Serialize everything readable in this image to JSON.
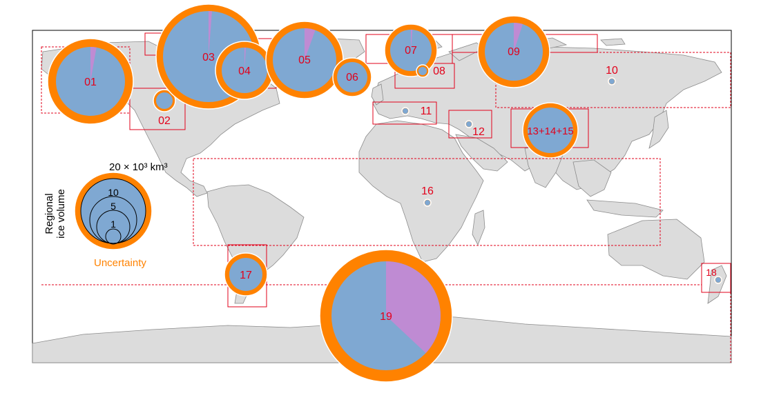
{
  "colors": {
    "land": "#dcdcdc",
    "coast": "#8a8a8a",
    "region_box": "#e2001a",
    "volume": "#7fa8d2",
    "sea_level_part": "#bf8bd3",
    "uncertainty": "#ff8200",
    "label": "#e2001a",
    "legend_text": "#000000",
    "legend_uncertainty_text": "#ff8200"
  },
  "legend": {
    "scale_label": "20 × 10³ km³",
    "levels": [
      "10",
      "5",
      "1"
    ],
    "axis_title_line1": "Regional",
    "axis_title_line2": "ice volume",
    "uncertainty_label": "Uncertainty"
  },
  "regions": [
    {
      "label": "01",
      "volume_share": 0.028
    },
    {
      "label": "02",
      "volume_share": 0.0
    },
    {
      "label": "03",
      "volume_share": 0.012
    },
    {
      "label": "04",
      "volume_share": 0.01
    },
    {
      "label": "05",
      "volume_share": 0.055
    },
    {
      "label": "06",
      "volume_share": 0.0
    },
    {
      "label": "07",
      "volume_share": 0.012
    },
    {
      "label": "08",
      "volume_share": 0.0
    },
    {
      "label": "09",
      "volume_share": 0.05
    },
    {
      "label": "10",
      "volume_share": 0.0
    },
    {
      "label": "11",
      "volume_share": 0.0
    },
    {
      "label": "12",
      "volume_share": 0.0
    },
    {
      "label": "13+14+15",
      "volume_share": 0.0
    },
    {
      "label": "16",
      "volume_share": 0.0
    },
    {
      "label": "17",
      "volume_share": 0.0
    },
    {
      "label": "18",
      "volume_share": 0.0
    },
    {
      "label": "19",
      "volume_share": 0.37
    }
  ]
}
